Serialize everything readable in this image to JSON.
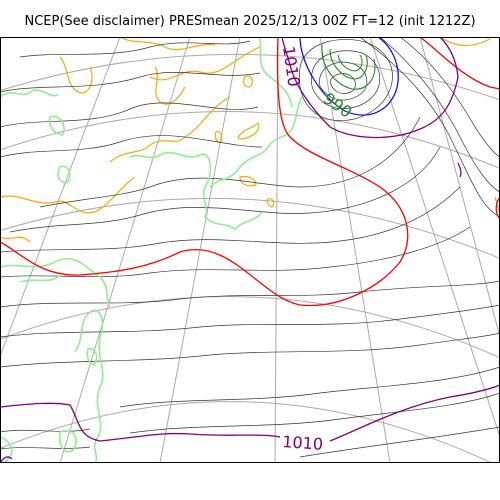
{
  "title": "NCEP(See disclaimer) PRESmean 2025/12/13 00Z FT=12 (init 1212Z)",
  "contour_labels": {
    "center_top": "1010",
    "low_center": "990",
    "bottom": "1010"
  },
  "colors": {
    "isobar": "#333333",
    "isobar_1000": "#ff0000",
    "isobar_1010": "#800080",
    "isobar_990": "#0000ff",
    "coastline": "#90ee90",
    "terrain": "#ffa500",
    "low_inner": "#228b22",
    "graticule": "#aaaaaa"
  }
}
